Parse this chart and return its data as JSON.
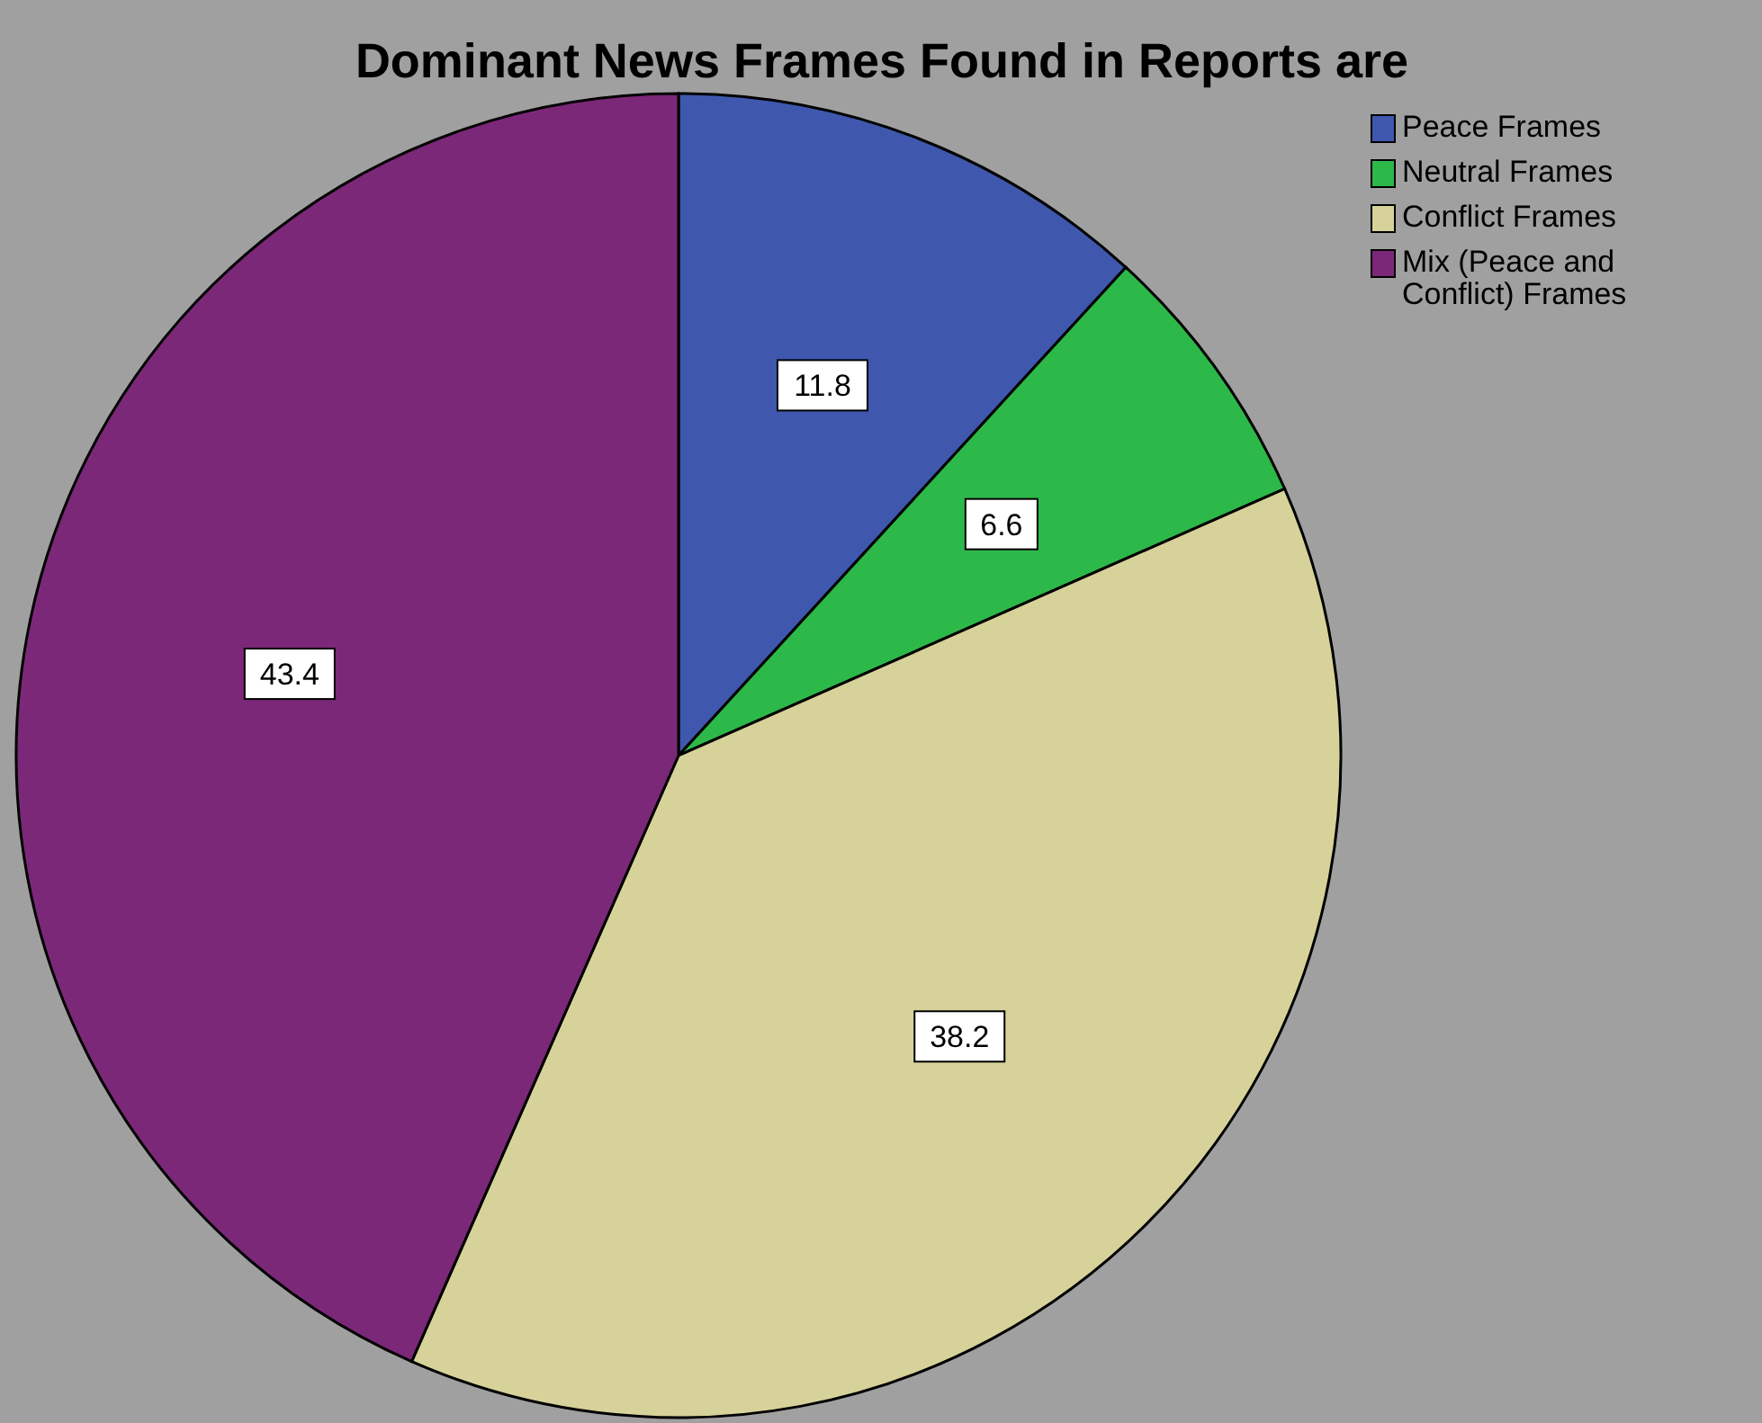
{
  "chart_data": {
    "type": "pie",
    "title": "Dominant News Frames Found in Reports are",
    "categories": [
      "Peace Frames",
      "Neutral Frames",
      "Conflict Frames",
      "Mix (Peace and Conflict) Frames"
    ],
    "values": [
      11.8,
      6.6,
      38.2,
      43.4
    ],
    "colors": [
      "#3f58ae",
      "#2db84a",
      "#d6d29a",
      "#7c2878"
    ],
    "data_labels": true,
    "legend": "top right"
  }
}
